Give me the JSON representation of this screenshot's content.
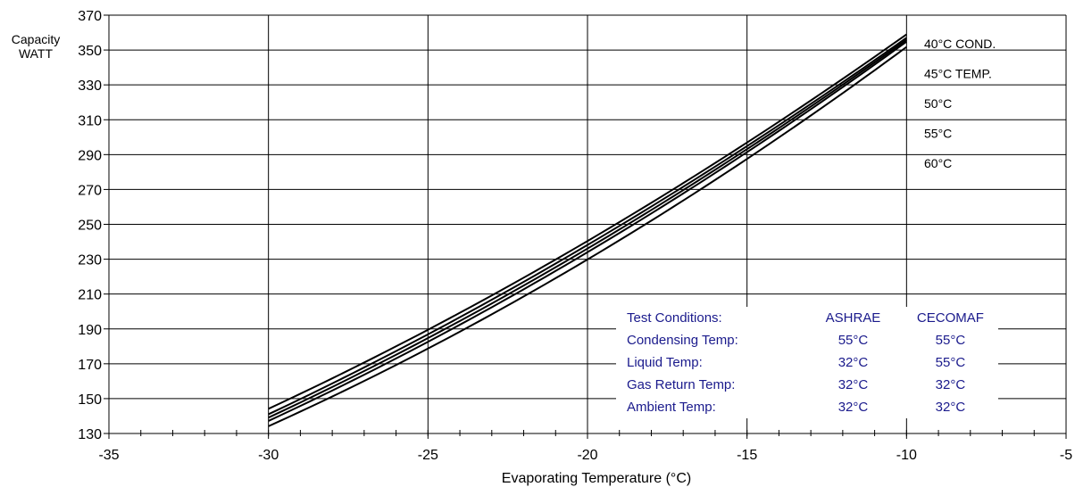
{
  "chart_data": {
    "type": "line",
    "xlabel": "Evaporating Temperature  (°C)",
    "ylabel_lines": [
      "Capacity",
      "WATT"
    ],
    "xlim": [
      -35,
      -5
    ],
    "ylim": [
      130,
      370
    ],
    "x_ticks": [
      -35,
      -30,
      -25,
      -20,
      -15,
      -10,
      -5
    ],
    "y_ticks": [
      130,
      150,
      170,
      190,
      210,
      230,
      250,
      270,
      290,
      310,
      330,
      350,
      370
    ],
    "x_minor_step": 1,
    "grid": true,
    "series": [
      {
        "name": "40°C COND.",
        "x": [
          -30,
          -25,
          -20,
          -15,
          -10
        ],
        "y": [
          144,
          190,
          240,
          297,
          359
        ]
      },
      {
        "name": "45°C TEMP.",
        "x": [
          -30,
          -25,
          -20,
          -15,
          -10
        ],
        "y": [
          141,
          187,
          238,
          295,
          357
        ]
      },
      {
        "name": "50°C",
        "x": [
          -30,
          -25,
          -20,
          -15,
          -10
        ],
        "y": [
          139,
          185,
          236,
          293,
          356
        ]
      },
      {
        "name": "55°C",
        "x": [
          -30,
          -25,
          -20,
          -15,
          -10
        ],
        "y": [
          137,
          183,
          234,
          291,
          355
        ]
      },
      {
        "name": "60°C",
        "x": [
          -30,
          -25,
          -20,
          -15,
          -10
        ],
        "y": [
          134,
          179,
          230,
          287,
          352
        ]
      }
    ],
    "conditions_table": {
      "rows": [
        [
          "Test Conditions:",
          "ASHRAE",
          "CECOMAF"
        ],
        [
          "Condensing Temp:",
          "55°C",
          "55°C"
        ],
        [
          "Liquid Temp:",
          "32°C",
          "55°C"
        ],
        [
          "Gas Return Temp:",
          "32°C",
          "32°C"
        ],
        [
          "Ambient Temp:",
          "32°C",
          "32°C"
        ]
      ]
    }
  },
  "colors": {
    "lines": "#000000",
    "grid": "#000000",
    "table_text": "#1a1a8c",
    "background": "#ffffff"
  }
}
